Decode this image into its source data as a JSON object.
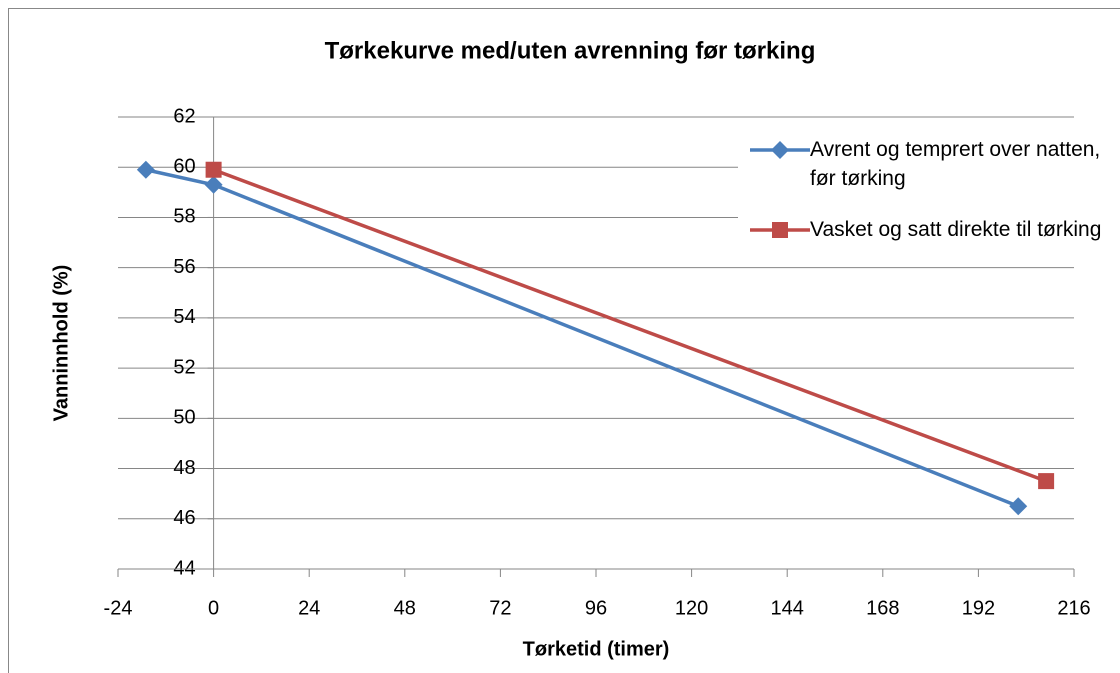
{
  "chart_data": {
    "type": "line",
    "title": "Tørkekurve med/uten avrenning før tørking",
    "x_label": "Tørketid (timer)",
    "y_label": "Vanninnhold (%)",
    "series": [
      {
        "name": "Avrent og temprert over natten, før tørking",
        "color": "#4a7ebb",
        "marker": "diamond",
        "x": [
          -17,
          0,
          202
        ],
        "values": [
          59.9,
          59.3,
          46.5
        ]
      },
      {
        "name": "Vasket og satt direkte til tørking",
        "color": "#be4b48",
        "marker": "square",
        "x": [
          0,
          209
        ],
        "values": [
          59.9,
          47.5
        ]
      }
    ],
    "xlim": [
      -24,
      216
    ],
    "xticks": [
      -24,
      0,
      24,
      48,
      72,
      96,
      120,
      144,
      168,
      192,
      216
    ],
    "ylim": [
      44,
      62
    ],
    "yticks": [
      44,
      46,
      48,
      50,
      52,
      54,
      56,
      58,
      60,
      62
    ],
    "grid": true,
    "legend": "right"
  }
}
